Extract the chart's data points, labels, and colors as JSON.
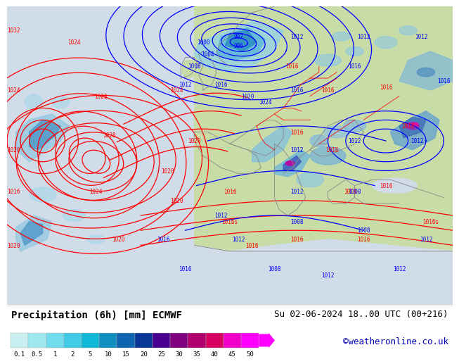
{
  "title": "Precipitation (6h) [mm] ECMWF",
  "datetime_str": "Su 02-06-2024 18..00 UTC (00+216)",
  "credit": "©weatheronline.co.uk",
  "colorbar_values": [
    "0.1",
    "0.5",
    "1",
    "2",
    "5",
    "10",
    "15",
    "20",
    "25",
    "30",
    "35",
    "40",
    "45",
    "50"
  ],
  "colorbar_colors": [
    "#c8f0f0",
    "#a0e8f0",
    "#70dced",
    "#40cce6",
    "#10b8d8",
    "#1090c0",
    "#1065b0",
    "#0a3898",
    "#4a0090",
    "#800080",
    "#b00070",
    "#d80060",
    "#f000c8",
    "#ff00ff"
  ],
  "ocean_color": "#d8e8f0",
  "land_color": "#c8dca8",
  "sea_color": "#c8dca8",
  "bg_white": "#f8f8f8",
  "legend_bg": "#ffffff",
  "title_fontsize": 10,
  "credit_fontsize": 9,
  "label_fontsize": 7
}
